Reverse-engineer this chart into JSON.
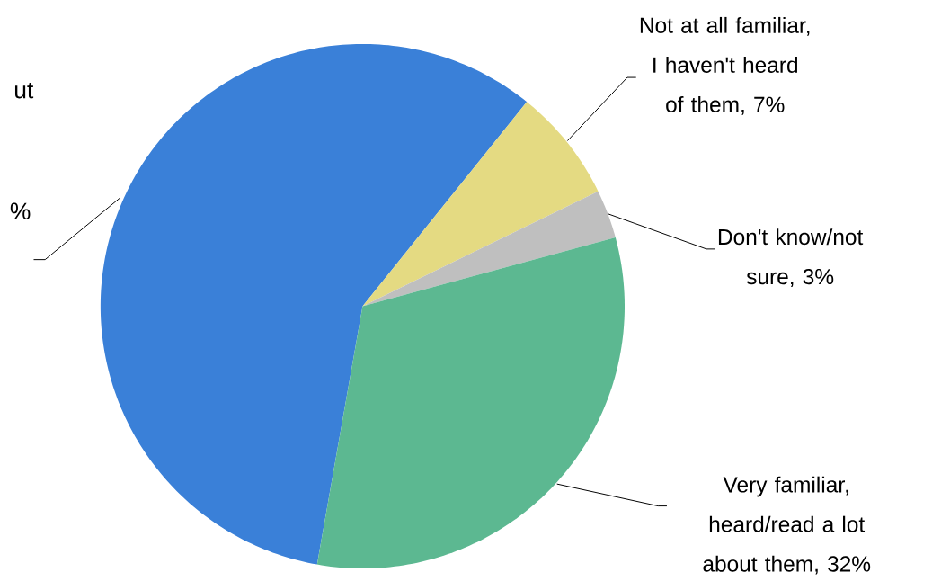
{
  "chart_data": {
    "type": "pie",
    "categories": [
      "ut",
      "Not at all familiar, I haven't heard of them, 7%",
      "Don't know/not sure, 3%",
      "Very familiar, heard/read a lot about them, 32%"
    ],
    "values": [
      58,
      7,
      3,
      32
    ],
    "colors": [
      "#3a80d8",
      "#e4da82",
      "#bfbfbf",
      "#5cb891"
    ],
    "value_labels": [
      "%",
      null,
      null,
      null
    ]
  }
}
